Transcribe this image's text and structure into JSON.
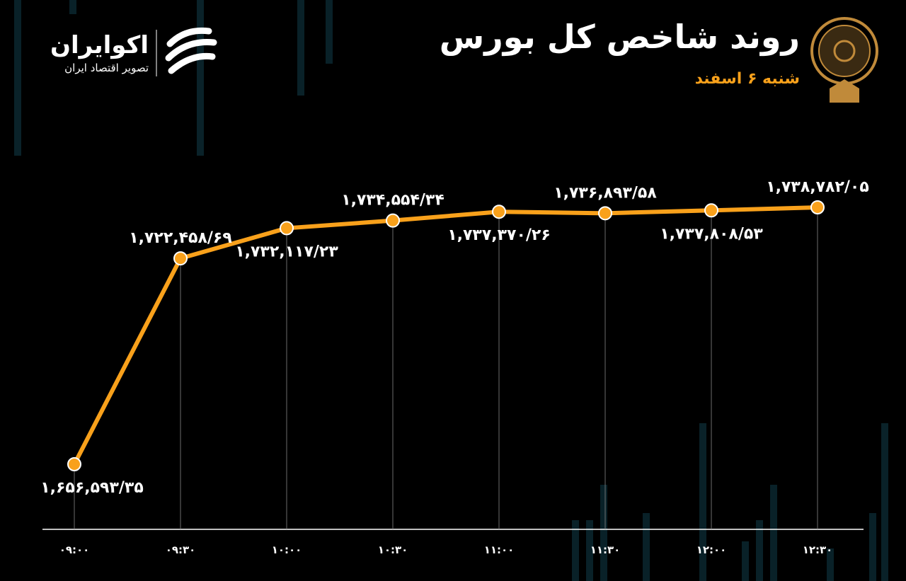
{
  "header": {
    "title": "روند شاخص کل بورس",
    "subtitle": "شنبه ۶ اسفند",
    "brand": "اکوایران",
    "brand_tagline": "تصویر اقتصاد ایران"
  },
  "chart_data": {
    "type": "line",
    "categories": [
      "۰۹:۰۰",
      "۰۹:۳۰",
      "۱۰:۰۰",
      "۱۰:۳۰",
      "۱۱:۰۰",
      "۱۱:۳۰",
      "۱۲:۰۰",
      "۱۲:۳۰"
    ],
    "series": [
      {
        "color": "#f9a11b",
        "values": [
          1656593.35,
          1722458.69,
          1732117.23,
          1734554.34,
          1737370.26,
          1736893.58,
          1737808.53,
          1738782.05
        ],
        "value_labels": [
          "۱,۶۵۶,۵۹۳/۳۵",
          "۱,۷۲۲,۴۵۸/۶۹",
          "۱,۷۳۲,۱۱۷/۲۳",
          "۱,۷۳۴,۵۵۴/۳۴",
          "۱,۷۳۷,۳۷۰/۲۶",
          "۱,۷۳۶,۸۹۳/۵۸",
          "۱,۷۳۷,۸۰۸/۵۳",
          "۱,۷۳۸,۷۸۲/۰۵"
        ]
      }
    ]
  }
}
